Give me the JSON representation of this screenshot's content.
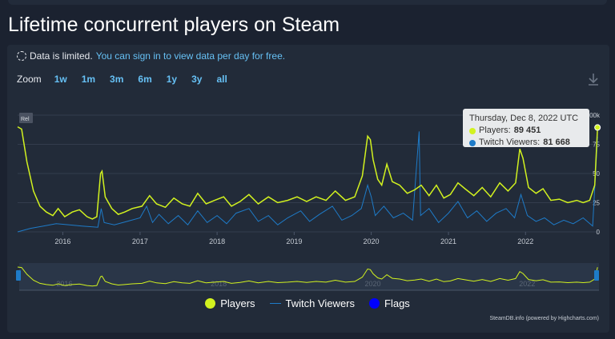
{
  "page": {
    "title": "Lifetime concurrent players on Steam"
  },
  "notice": {
    "text": "Data is limited.",
    "link": "You can sign in to view data per day for free."
  },
  "zoom": {
    "label": "Zoom",
    "buttons": [
      "1w",
      "1m",
      "3m",
      "6m",
      "1y",
      "3y",
      "all"
    ]
  },
  "tooltip": {
    "date": "Thursday, Dec 8, 2022 UTC",
    "players_label": "Players:",
    "players_value": "89 451",
    "twitch_label": "Twitch Viewers:",
    "twitch_value": "81 668"
  },
  "legend": {
    "players": "Players",
    "twitch": "Twitch Viewers",
    "flags": "Flags"
  },
  "credit": "SteamDB.info (powered by Highcharts.com)",
  "colors": {
    "players": "#d2f21f",
    "twitch": "#1e7bc8",
    "flags": "#0000ff"
  },
  "chart_data": {
    "type": "line",
    "title": "Lifetime concurrent players on Steam",
    "x_axis": {
      "type": "date",
      "range": [
        "2015-06-01",
        "2022-12-15"
      ],
      "tick_labels": [
        "2016",
        "2017",
        "2018",
        "2019",
        "2020",
        "2021",
        "2022"
      ]
    },
    "y_axis": {
      "range": [
        0,
        100000
      ],
      "tick_labels_visible": [
        "0",
        "25",
        "50",
        "75",
        "100k"
      ]
    },
    "grid": true,
    "series": [
      {
        "name": "Players",
        "points": [
          [
            "2015-06-01",
            90000
          ],
          [
            "2015-06-20",
            88000
          ],
          [
            "2015-07-15",
            60000
          ],
          [
            "2015-08-15",
            35000
          ],
          [
            "2015-09-15",
            22000
          ],
          [
            "2015-10-15",
            17000
          ],
          [
            "2015-11-15",
            14000
          ],
          [
            "2015-12-10",
            20000
          ],
          [
            "2016-01-10",
            13000
          ],
          [
            "2016-02-15",
            17000
          ],
          [
            "2016-03-20",
            19000
          ],
          [
            "2016-04-25",
            13000
          ],
          [
            "2016-05-20",
            11000
          ],
          [
            "2016-06-10",
            13000
          ],
          [
            "2016-06-28",
            50000
          ],
          [
            "2016-07-05",
            52000
          ],
          [
            "2016-07-20",
            30000
          ],
          [
            "2016-08-20",
            20000
          ],
          [
            "2016-09-20",
            15000
          ],
          [
            "2016-10-20",
            17000
          ],
          [
            "2016-11-25",
            20000
          ],
          [
            "2017-01-10",
            22000
          ],
          [
            "2017-02-15",
            31000
          ],
          [
            "2017-03-20",
            24000
          ],
          [
            "2017-05-01",
            21000
          ],
          [
            "2017-06-10",
            29000
          ],
          [
            "2017-07-20",
            24000
          ],
          [
            "2017-08-25",
            22000
          ],
          [
            "2017-10-01",
            33000
          ],
          [
            "2017-11-10",
            24000
          ],
          [
            "2017-12-20",
            27000
          ],
          [
            "2018-02-01",
            30000
          ],
          [
            "2018-03-10",
            22000
          ],
          [
            "2018-04-20",
            26000
          ],
          [
            "2018-06-01",
            32000
          ],
          [
            "2018-07-15",
            24000
          ],
          [
            "2018-09-01",
            30000
          ],
          [
            "2018-10-15",
            25000
          ],
          [
            "2018-12-01",
            27000
          ],
          [
            "2019-01-15",
            30000
          ],
          [
            "2019-03-01",
            26000
          ],
          [
            "2019-04-15",
            30000
          ],
          [
            "2019-06-01",
            27000
          ],
          [
            "2019-07-15",
            35000
          ],
          [
            "2019-09-01",
            27000
          ],
          [
            "2019-10-15",
            30000
          ],
          [
            "2019-11-20",
            48000
          ],
          [
            "2019-12-15",
            82000
          ],
          [
            "2019-12-28",
            79000
          ],
          [
            "2020-01-10",
            62000
          ],
          [
            "2020-02-01",
            45000
          ],
          [
            "2020-02-20",
            40000
          ],
          [
            "2020-03-15",
            58000
          ],
          [
            "2020-04-10",
            43000
          ],
          [
            "2020-05-15",
            40000
          ],
          [
            "2020-06-20",
            33000
          ],
          [
            "2020-07-25",
            36000
          ],
          [
            "2020-08-25",
            40000
          ],
          [
            "2020-10-01",
            31000
          ],
          [
            "2020-11-05",
            40000
          ],
          [
            "2020-12-10",
            29000
          ],
          [
            "2021-01-10",
            32000
          ],
          [
            "2021-02-15",
            42000
          ],
          [
            "2021-03-20",
            37000
          ],
          [
            "2021-05-01",
            31000
          ],
          [
            "2021-06-10",
            38000
          ],
          [
            "2021-07-20",
            30000
          ],
          [
            "2021-09-01",
            42000
          ],
          [
            "2021-10-10",
            35000
          ],
          [
            "2021-11-15",
            42000
          ],
          [
            "2021-12-05",
            71000
          ],
          [
            "2021-12-20",
            63000
          ],
          [
            "2022-01-15",
            38000
          ],
          [
            "2022-02-20",
            33000
          ],
          [
            "2022-03-25",
            37000
          ],
          [
            "2022-05-01",
            27000
          ],
          [
            "2022-06-10",
            28000
          ],
          [
            "2022-07-20",
            25000
          ],
          [
            "2022-09-01",
            27000
          ],
          [
            "2022-10-01",
            25000
          ],
          [
            "2022-11-01",
            27000
          ],
          [
            "2022-11-25",
            40000
          ],
          [
            "2022-12-08",
            89451
          ]
        ]
      },
      {
        "name": "Twitch Viewers",
        "points": [
          [
            "2015-06-01",
            0
          ],
          [
            "2015-08-01",
            3000
          ],
          [
            "2015-10-01",
            5000
          ],
          [
            "2015-12-01",
            7000
          ],
          [
            "2016-02-01",
            6000
          ],
          [
            "2016-04-01",
            5000
          ],
          [
            "2016-06-15",
            4000
          ],
          [
            "2016-07-01",
            20000
          ],
          [
            "2016-07-15",
            8000
          ],
          [
            "2016-09-01",
            6000
          ],
          [
            "2016-11-01",
            9000
          ],
          [
            "2017-01-01",
            12000
          ],
          [
            "2017-02-01",
            22000
          ],
          [
            "2017-03-01",
            8000
          ],
          [
            "2017-04-01",
            15000
          ],
          [
            "2017-05-15",
            7000
          ],
          [
            "2017-07-01",
            14000
          ],
          [
            "2017-08-15",
            6000
          ],
          [
            "2017-10-01",
            18000
          ],
          [
            "2017-11-15",
            8000
          ],
          [
            "2018-01-01",
            14000
          ],
          [
            "2018-02-15",
            7000
          ],
          [
            "2018-04-01",
            16000
          ],
          [
            "2018-06-01",
            20000
          ],
          [
            "2018-07-15",
            9000
          ],
          [
            "2018-09-01",
            14000
          ],
          [
            "2018-10-15",
            6000
          ],
          [
            "2018-12-01",
            12000
          ],
          [
            "2019-02-01",
            18000
          ],
          [
            "2019-03-15",
            9000
          ],
          [
            "2019-05-01",
            15000
          ],
          [
            "2019-07-01",
            22000
          ],
          [
            "2019-08-15",
            10000
          ],
          [
            "2019-10-01",
            14000
          ],
          [
            "2019-11-15",
            20000
          ],
          [
            "2019-12-15",
            40000
          ],
          [
            "2020-01-01",
            30000
          ],
          [
            "2020-01-20",
            14000
          ],
          [
            "2020-03-01",
            22000
          ],
          [
            "2020-04-15",
            12000
          ],
          [
            "2020-06-01",
            16000
          ],
          [
            "2020-07-15",
            10000
          ],
          [
            "2020-08-15",
            86000
          ],
          [
            "2020-08-22",
            14000
          ],
          [
            "2020-10-01",
            20000
          ],
          [
            "2020-11-15",
            8000
          ],
          [
            "2021-01-01",
            16000
          ],
          [
            "2021-02-15",
            26000
          ],
          [
            "2021-04-01",
            12000
          ],
          [
            "2021-05-15",
            18000
          ],
          [
            "2021-07-01",
            9000
          ],
          [
            "2021-08-15",
            16000
          ],
          [
            "2021-10-01",
            20000
          ],
          [
            "2021-11-10",
            12000
          ],
          [
            "2021-12-10",
            32000
          ],
          [
            "2022-01-10",
            14000
          ],
          [
            "2022-02-20",
            9000
          ],
          [
            "2022-04-01",
            12000
          ],
          [
            "2022-05-15",
            6000
          ],
          [
            "2022-07-01",
            10000
          ],
          [
            "2022-08-15",
            7000
          ],
          [
            "2022-10-01",
            12000
          ],
          [
            "2022-11-15",
            5000
          ],
          [
            "2022-12-08",
            81668
          ]
        ]
      }
    ],
    "flags": [
      "Rel"
    ]
  }
}
